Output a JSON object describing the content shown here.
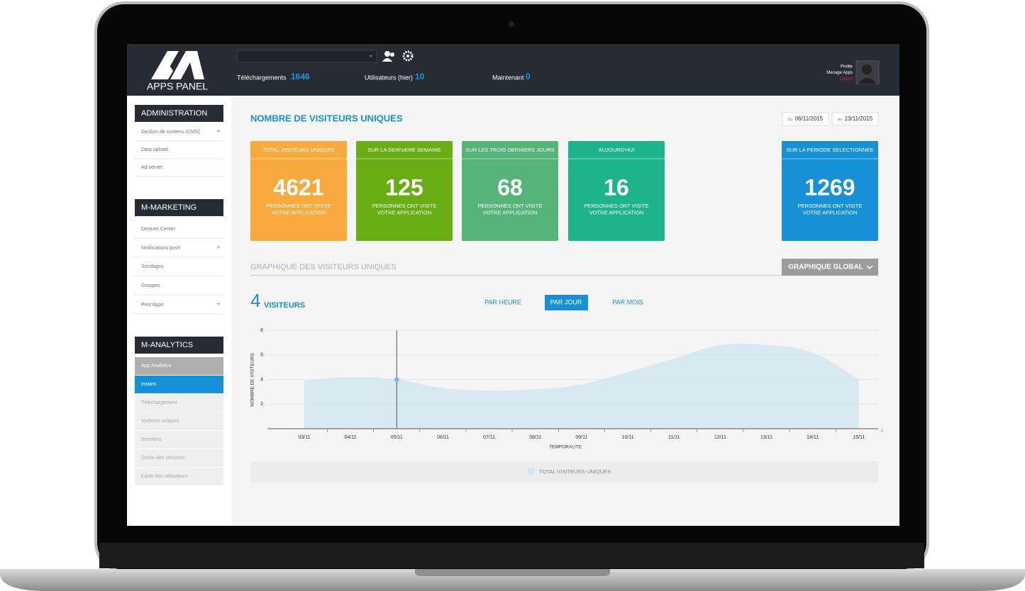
{
  "header": {
    "logo": "APPS PANEL",
    "stats": [
      {
        "label": "Téléchargements",
        "value": 1646
      },
      {
        "label": "Utilisateurs (hier)",
        "value": 10
      },
      {
        "label": "Maintenant",
        "value": 0
      }
    ],
    "user_menu": [
      "Profile",
      "Manage Apps",
      "Logout"
    ]
  },
  "sidebar": {
    "sections": [
      {
        "title": "ADMINISTRATION",
        "items": [
          "Gestion de contenu (CMS)",
          "Data upload",
          "Ad server"
        ]
      },
      {
        "title": "M-MARKETING",
        "items": [
          "Devices Center",
          "Notifications push",
          "Sondages",
          "Groupes",
          "Prez'Apps"
        ]
      },
      {
        "title": "M-ANALYTICS",
        "items": [
          "App Analytics",
          "Instant",
          "Téléchargement",
          "Visiteurs uniques",
          "Sessions",
          "Durée des sessions",
          "Carte des utilisateurs"
        ]
      }
    ]
  },
  "main": {
    "title": "NOMBRE DE VISITEURS UNIQUES",
    "date_from": {
      "prefix": "du",
      "date": "06/11/2015"
    },
    "date_to": {
      "prefix": "au",
      "date": "13/11/2015"
    },
    "cards": [
      {
        "title": "TOTAL VISITEURS UNIQUES",
        "value": 4621,
        "caption": [
          "PERSONNES ONT VISITE",
          "VOTRE APPLICATION"
        ],
        "color": "#f8ab3c"
      },
      {
        "title": "SUR LA DERNIERE SEMAINE",
        "value": 125,
        "caption": [
          "PERSONNES ONT VISITE",
          "VOTRE APPLICATION"
        ],
        "color": "#67ad13"
      },
      {
        "title": "SUR LES TROIS DERNIERS JOURS",
        "value": 68,
        "caption": [
          "PERSONNES ONT VISITE",
          "VOTRE APPLICATION"
        ],
        "color": "#55b47a"
      },
      {
        "title": "AUJOURD'HUI",
        "value": 16,
        "caption": [
          "PERSONNES ONT VISITE",
          "VOTRE APPLICATION"
        ],
        "color": "#1db48c"
      },
      {
        "title": "SUR LA PERIODE SELECTIONNEE",
        "value": 1269,
        "caption": [
          "PERSONNES ONT VISITE",
          "VOTRE APPLICATION"
        ],
        "color": "#1690d7"
      }
    ],
    "section_title": "GRAPHIQUE DES VISITEURS UNIQUES",
    "dropdown": "GRAPHIQUE GLOBAL",
    "current": {
      "value": 4,
      "unit": "VISITEURS"
    },
    "tabs": [
      "PAR HEURE",
      "PAR JOUR",
      "PAR MOIS"
    ]
  },
  "chart_data": {
    "type": "area",
    "x_label": "TEMPORALITE",
    "y_label": "NOMBRE DE VISITEURS",
    "categories": [
      "03/11",
      "04/11",
      "05/11",
      "06/11",
      "07/11",
      "08/11",
      "09/11",
      "10/11",
      "11/11",
      "12/11",
      "13/11",
      "14/11",
      "15/11"
    ],
    "series": [
      {
        "name": "TOTAL VISITEURS UNIQUES",
        "color": "#d3e6f1",
        "values": [
          3.9,
          4.2,
          4,
          3.3,
          3.1,
          3.2,
          3.6,
          4.6,
          5.7,
          6.8,
          6.8,
          6.2,
          4
        ]
      }
    ],
    "ylim": [
      0,
      8
    ],
    "yticks": [
      2,
      4,
      6,
      8
    ],
    "grid": true
  }
}
